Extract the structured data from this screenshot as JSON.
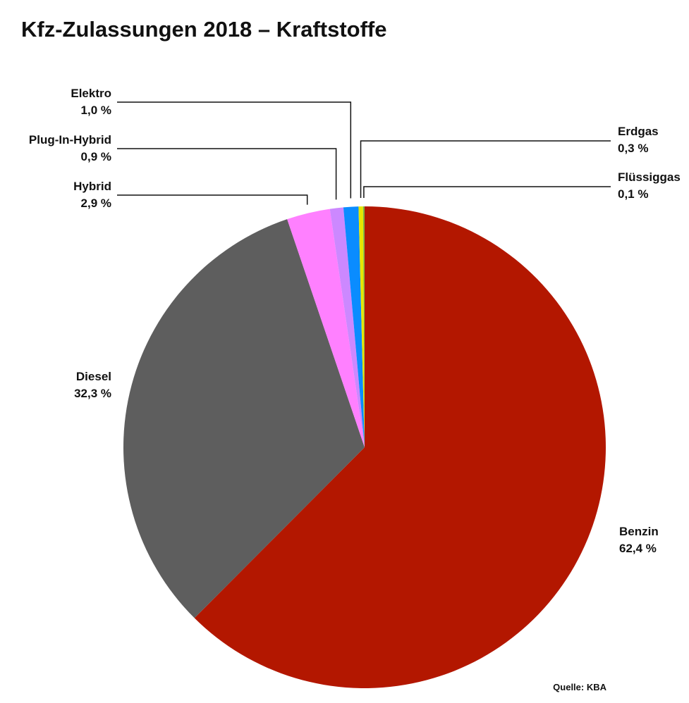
{
  "chart_data": {
    "type": "pie",
    "title": "Kfz-Zulassungen 2018 – Kraftstoffe",
    "categories": [
      "Benzin",
      "Diesel",
      "Hybrid",
      "Plug-In-Hybrid",
      "Elektro",
      "Erdgas",
      "Flüssiggas"
    ],
    "values": [
      62.4,
      32.3,
      2.9,
      0.9,
      1.0,
      0.3,
      0.1
    ],
    "value_labels": [
      "62,4 %",
      "32,3 %",
      "2,9 %",
      "0,9 %",
      "1,0 %",
      "0,3 %",
      "0,1 %"
    ],
    "colors": [
      "#b31700",
      "#5e5e5e",
      "#ff80ff",
      "#cc88ff",
      "#0a8cff",
      "#e6e600",
      "#7cb342"
    ],
    "source": "Quelle: KBA"
  }
}
